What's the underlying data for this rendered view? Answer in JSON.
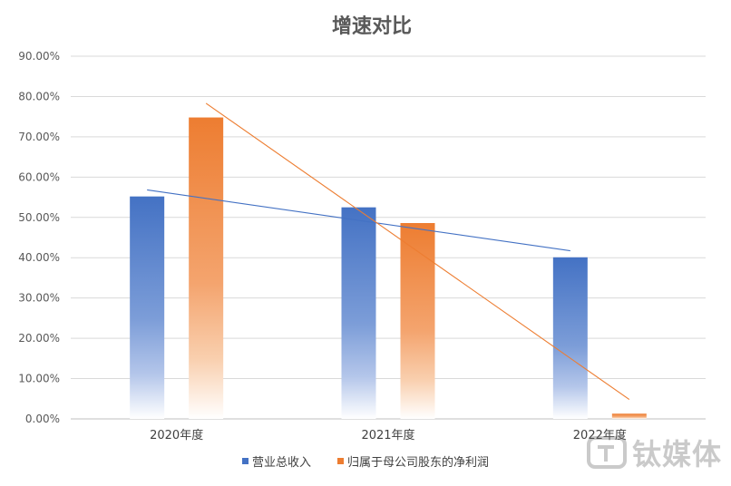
{
  "chart_data": {
    "type": "bar",
    "title": "增速对比",
    "categories": [
      "2020年度",
      "2021年度",
      "2022年度"
    ],
    "series": [
      {
        "name": "营业总收入",
        "values": [
          55.2,
          52.5,
          40.1
        ],
        "color": "#4472C4"
      },
      {
        "name": "归属于母公司股东的净利润",
        "values": [
          74.8,
          48.6,
          1.3
        ],
        "color": "#ED7D31"
      }
    ],
    "ylim": [
      0,
      90
    ],
    "yticks": [
      "0.00%",
      "10.00%",
      "20.00%",
      "30.00%",
      "40.00%",
      "50.00%",
      "60.00%",
      "70.00%",
      "80.00%",
      "90.00%"
    ],
    "trendlines": true,
    "grid": true,
    "legend": "bottom"
  },
  "watermark": {
    "text": "钛媒体",
    "logo_name": "tmtpost-logo-icon"
  }
}
